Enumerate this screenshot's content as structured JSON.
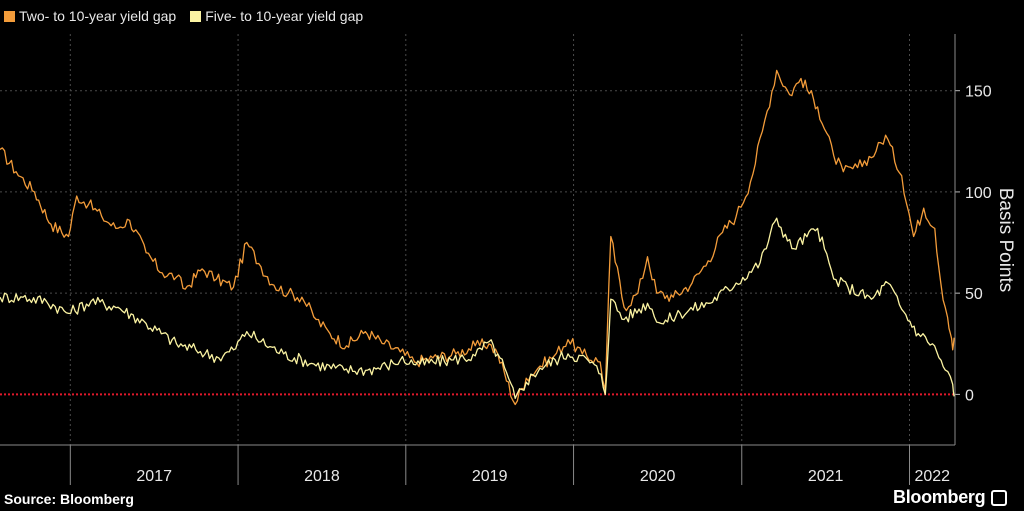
{
  "chart_data": {
    "type": "line",
    "ylabel": "Basis Points",
    "ylim": [
      -25,
      178
    ],
    "yticks": [
      0,
      50,
      100,
      150
    ],
    "xlim": [
      "2016-08-01",
      "2022-04-10"
    ],
    "xtick_labels": [
      "2017",
      "2018",
      "2019",
      "2020",
      "2021",
      "2022"
    ],
    "zero_line": {
      "value": 0,
      "color": "#e0182b",
      "style": "dotted"
    },
    "grid": "dotted vertical and horizontal",
    "legend_position": "top-left",
    "series": [
      {
        "name": "Two- to 10-year yield gap",
        "color": "#f39c3a",
        "points": [
          [
            "2016-08-01",
            121
          ],
          [
            "2016-09-05",
            110
          ],
          [
            "2016-10-15",
            100
          ],
          [
            "2016-11-20",
            84
          ],
          [
            "2016-12-28",
            78
          ],
          [
            "2017-01-15",
            98
          ],
          [
            "2017-02-10",
            94
          ],
          [
            "2017-03-10",
            88
          ],
          [
            "2017-04-10",
            82
          ],
          [
            "2017-05-10",
            86
          ],
          [
            "2017-06-15",
            70
          ],
          [
            "2017-07-20",
            60
          ],
          [
            "2017-08-20",
            58
          ],
          [
            "2017-09-08",
            52
          ],
          [
            "2017-10-15",
            62
          ],
          [
            "2017-11-15",
            57
          ],
          [
            "2017-12-22",
            53
          ],
          [
            "2018-01-20",
            75
          ],
          [
            "2018-02-20",
            63
          ],
          [
            "2018-03-20",
            54
          ],
          [
            "2018-04-20",
            50
          ],
          [
            "2018-05-20",
            48
          ],
          [
            "2018-06-20",
            37
          ],
          [
            "2018-07-20",
            30
          ],
          [
            "2018-08-25",
            24
          ],
          [
            "2018-10-05",
            31
          ],
          [
            "2018-11-15",
            25
          ],
          [
            "2018-12-20",
            21
          ],
          [
            "2019-01-20",
            16
          ],
          [
            "2019-03-01",
            18
          ],
          [
            "2019-04-20",
            20
          ],
          [
            "2019-06-01",
            24
          ],
          [
            "2019-07-01",
            25
          ],
          [
            "2019-07-20",
            20
          ],
          [
            "2019-08-27",
            -5
          ],
          [
            "2019-09-20",
            8
          ],
          [
            "2019-10-20",
            14
          ],
          [
            "2019-11-20",
            19
          ],
          [
            "2019-12-20",
            27
          ],
          [
            "2020-01-20",
            20
          ],
          [
            "2020-02-28",
            16
          ],
          [
            "2020-03-10",
            2
          ],
          [
            "2020-03-22",
            78
          ],
          [
            "2020-04-20",
            43
          ],
          [
            "2020-05-20",
            50
          ],
          [
            "2020-06-10",
            68
          ],
          [
            "2020-06-30",
            50
          ],
          [
            "2020-08-05",
            48
          ],
          [
            "2020-09-15",
            55
          ],
          [
            "2020-10-20",
            66
          ],
          [
            "2020-11-20",
            80
          ],
          [
            "2020-12-20",
            88
          ],
          [
            "2021-01-20",
            105
          ],
          [
            "2021-02-15",
            130
          ],
          [
            "2021-03-18",
            160
          ],
          [
            "2021-04-15",
            148
          ],
          [
            "2021-05-10",
            156
          ],
          [
            "2021-06-15",
            142
          ],
          [
            "2021-07-20",
            118
          ],
          [
            "2021-08-10",
            110
          ],
          [
            "2021-09-10",
            112
          ],
          [
            "2021-10-20",
            120
          ],
          [
            "2021-11-10",
            128
          ],
          [
            "2021-12-15",
            108
          ],
          [
            "2022-01-10",
            78
          ],
          [
            "2022-02-01",
            92
          ],
          [
            "2022-02-25",
            82
          ],
          [
            "2022-03-10",
            55
          ],
          [
            "2022-03-25",
            38
          ],
          [
            "2022-03-31",
            30
          ],
          [
            "2022-04-05",
            22
          ],
          [
            "2022-04-08",
            28
          ]
        ]
      },
      {
        "name": "Five- to 10-year yield gap",
        "color": "#fbf3a2",
        "points": [
          [
            "2016-08-01",
            48
          ],
          [
            "2016-09-20",
            48
          ],
          [
            "2016-11-10",
            46
          ],
          [
            "2016-12-28",
            40
          ],
          [
            "2017-02-15",
            46
          ],
          [
            "2017-04-15",
            43
          ],
          [
            "2017-06-15",
            35
          ],
          [
            "2017-08-20",
            25
          ],
          [
            "2017-10-01",
            22
          ],
          [
            "2017-11-20",
            18
          ],
          [
            "2017-12-22",
            22
          ],
          [
            "2018-01-20",
            31
          ],
          [
            "2018-02-20",
            26
          ],
          [
            "2018-04-10",
            20
          ],
          [
            "2018-06-15",
            15
          ],
          [
            "2018-08-20",
            12
          ],
          [
            "2018-10-10",
            12
          ],
          [
            "2018-11-20",
            14
          ],
          [
            "2018-12-20",
            17
          ],
          [
            "2019-02-01",
            15
          ],
          [
            "2019-04-10",
            17
          ],
          [
            "2019-06-01",
            19
          ],
          [
            "2019-07-01",
            26
          ],
          [
            "2019-07-25",
            18
          ],
          [
            "2019-08-27",
            -2
          ],
          [
            "2019-09-20",
            6
          ],
          [
            "2019-10-20",
            13
          ],
          [
            "2019-12-20",
            20
          ],
          [
            "2020-02-01",
            17
          ],
          [
            "2020-03-01",
            10
          ],
          [
            "2020-03-10",
            0
          ],
          [
            "2020-03-22",
            47
          ],
          [
            "2020-04-20",
            37
          ],
          [
            "2020-06-10",
            45
          ],
          [
            "2020-07-10",
            35
          ],
          [
            "2020-08-20",
            40
          ],
          [
            "2020-10-20",
            45
          ],
          [
            "2020-12-20",
            55
          ],
          [
            "2021-02-10",
            65
          ],
          [
            "2021-03-18",
            87
          ],
          [
            "2021-04-20",
            72
          ],
          [
            "2021-06-15",
            82
          ],
          [
            "2021-07-20",
            57
          ],
          [
            "2021-08-20",
            53
          ],
          [
            "2021-10-10",
            47
          ],
          [
            "2021-11-15",
            55
          ],
          [
            "2021-12-15",
            42
          ],
          [
            "2022-01-20",
            30
          ],
          [
            "2022-02-20",
            25
          ],
          [
            "2022-03-20",
            12
          ],
          [
            "2022-04-05",
            5
          ],
          [
            "2022-04-08",
            -1
          ]
        ]
      }
    ]
  },
  "source": "Source: Bloomberg",
  "brand": "Bloomberg"
}
